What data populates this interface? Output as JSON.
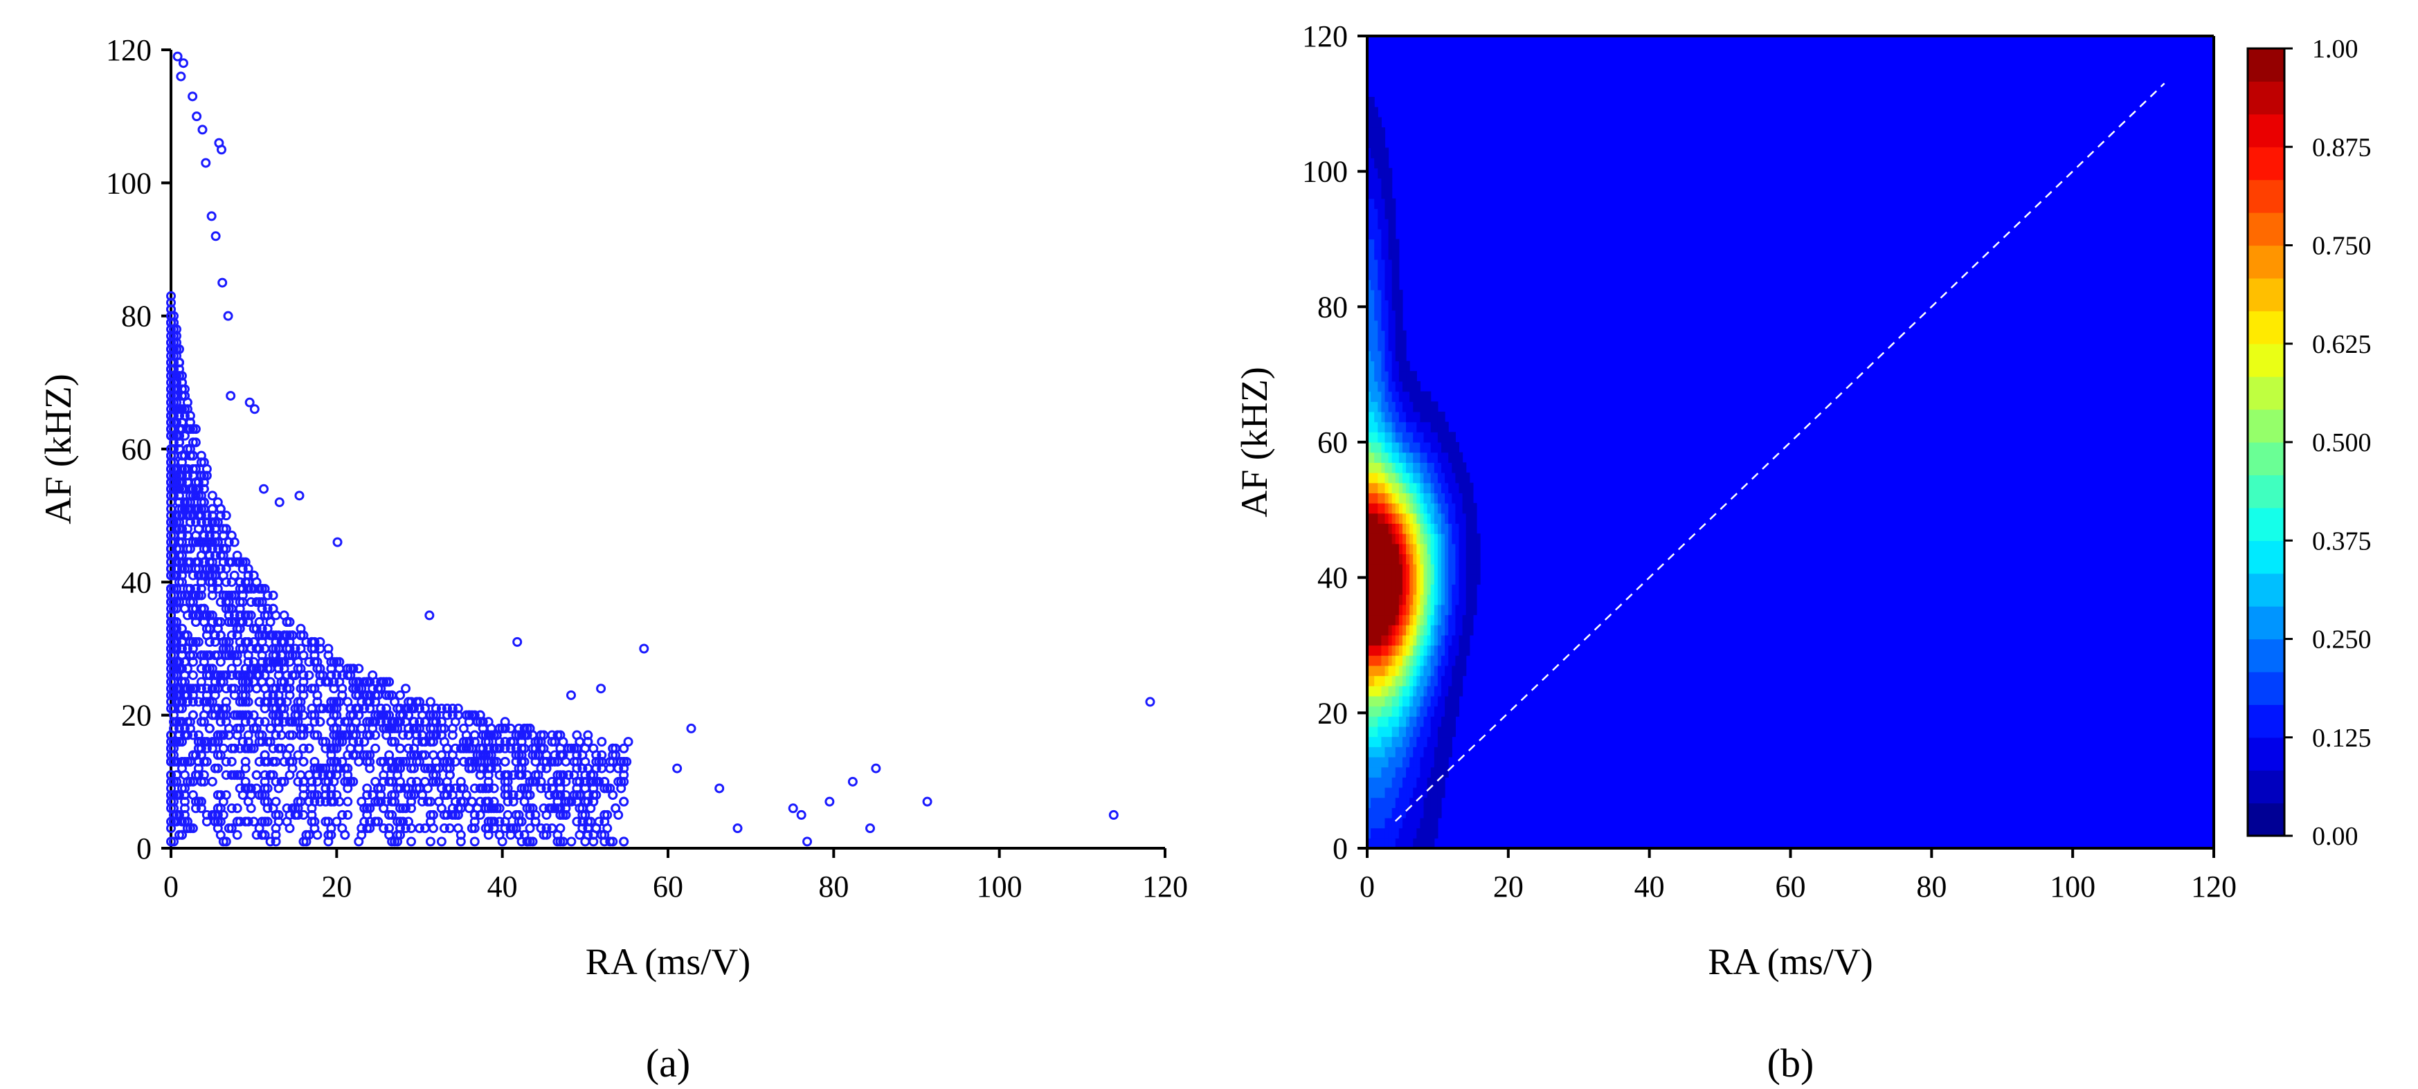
{
  "chart_data": [
    {
      "panel": "(a)",
      "type": "scatter",
      "xlabel": "RA (ms/V)",
      "ylabel": "AF (kHZ)",
      "xlim": [
        0,
        120
      ],
      "ylim": [
        0,
        120
      ],
      "xticks": [
        "0",
        "20",
        "40",
        "60",
        "80",
        "100",
        "120"
      ],
      "yticks": [
        "0",
        "20",
        "40",
        "60",
        "80",
        "100",
        "120"
      ],
      "marker": "open-circle",
      "color": "#1a1aff",
      "cloud": {
        "count": 2400,
        "af_ra_scale": 9.0
      },
      "points": [
        [
          0.8,
          119
        ],
        [
          1.5,
          118
        ],
        [
          1.2,
          116
        ],
        [
          2.6,
          113
        ],
        [
          3.1,
          110
        ],
        [
          3.8,
          108
        ],
        [
          4.2,
          103
        ],
        [
          5.8,
          106
        ],
        [
          6.1,
          105
        ],
        [
          4.9,
          95
        ],
        [
          5.4,
          92
        ],
        [
          6.2,
          85
        ],
        [
          6.9,
          80
        ],
        [
          7.2,
          68
        ],
        [
          9.5,
          67
        ],
        [
          10.1,
          66
        ],
        [
          11.2,
          54
        ],
        [
          13.1,
          52
        ],
        [
          15.5,
          53
        ],
        [
          20.1,
          46
        ],
        [
          41.8,
          31
        ],
        [
          57.1,
          30
        ],
        [
          31.2,
          35
        ],
        [
          48.3,
          23
        ],
        [
          51.9,
          24
        ],
        [
          47.1,
          14
        ],
        [
          55.2,
          16
        ],
        [
          61.1,
          12
        ],
        [
          62.8,
          18
        ],
        [
          66.2,
          9
        ],
        [
          68.4,
          3
        ],
        [
          75.1,
          6
        ],
        [
          76.1,
          5
        ],
        [
          76.8,
          1
        ],
        [
          79.5,
          7
        ],
        [
          82.3,
          10
        ],
        [
          84.4,
          3
        ],
        [
          85.1,
          12
        ],
        [
          91.3,
          7
        ],
        [
          113.8,
          5
        ],
        [
          118.2,
          22
        ]
      ]
    },
    {
      "panel": "(b)",
      "type": "heatmap",
      "xlabel": "RA (ms/V)",
      "ylabel": "AF (kHZ)",
      "xlim": [
        0,
        120
      ],
      "ylim": [
        0,
        120
      ],
      "xticks": [
        "0",
        "20",
        "40",
        "60",
        "80",
        "100",
        "120"
      ],
      "yticks": [
        "0",
        "20",
        "40",
        "60",
        "80",
        "100",
        "120"
      ],
      "colorbar": {
        "range": [
          0.0,
          1.0
        ],
        "ticks": [
          "0.00",
          "0.125",
          "0.250",
          "0.375",
          "0.500",
          "0.625",
          "0.750",
          "0.875",
          "1.00"
        ],
        "levels": 24
      },
      "peak": {
        "ra": 1.0,
        "af": 40,
        "value": 1.0
      },
      "diagonal": {
        "from": [
          4,
          4
        ],
        "to": [
          113,
          113
        ],
        "style": "dashed",
        "color": "#ffffff"
      }
    }
  ],
  "colors": {
    "marker": "#1a1aff",
    "background_field": "#0000ff",
    "axis": "#000000"
  }
}
